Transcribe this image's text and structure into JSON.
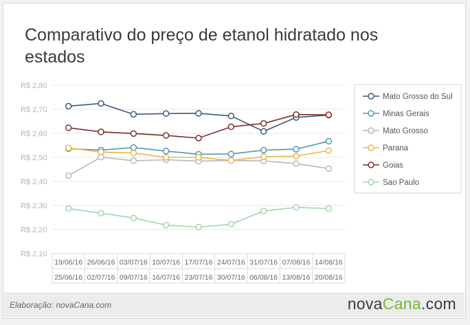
{
  "title": "Comparativo do preço de etanol hidratado nos estados",
  "footer": {
    "credit": "Elaboração: novaCana.com",
    "brand_part1": "nova",
    "brand_part2": "Cana",
    "brand_part3": ".com"
  },
  "chart_data": {
    "type": "line",
    "title": "Comparativo do preço de etanol hidratado nos estados",
    "categories": [
      [
        "19/06/16",
        "25/06/16"
      ],
      [
        "26/06/16",
        "02/07/16"
      ],
      [
        "03/07/16",
        "09/07/16"
      ],
      [
        "10/07/16",
        "16/07/16"
      ],
      [
        "17/07/16",
        "23/07/16"
      ],
      [
        "24/07/16",
        "30/07/16"
      ],
      [
        "31/07/16",
        "06/08/16"
      ],
      [
        "07/08/16",
        "13/08/16"
      ],
      [
        "14/08/16",
        "20/08/16"
      ]
    ],
    "y_ticks": [
      "R$ 2,10",
      "R$ 2,20",
      "R$ 2,30",
      "R$ 2,40",
      "R$ 2,50",
      "R$ 2,60",
      "R$ 2,70",
      "R$ 2,80"
    ],
    "ylim": [
      2.1,
      2.8
    ],
    "grid": true,
    "legend_position": "right",
    "series": [
      {
        "name": "Mato Grosso do Sul",
        "color": "#3d5877",
        "values": [
          2.713,
          2.724,
          2.679,
          2.682,
          2.683,
          2.672,
          2.608,
          2.666,
          2.676
        ]
      },
      {
        "name": "Minas Gerais",
        "color": "#4e9aa9",
        "values": [
          2.536,
          2.53,
          2.541,
          2.526,
          2.513,
          2.514,
          2.53,
          2.534,
          2.567
        ]
      },
      {
        "name": "Mato Grosso",
        "color": "#b8b8b8",
        "values": [
          2.424,
          2.501,
          2.486,
          2.49,
          2.484,
          2.487,
          2.485,
          2.474,
          2.453
        ]
      },
      {
        "name": "Parana",
        "color": "#f0b349",
        "values": [
          2.539,
          2.522,
          2.518,
          2.5,
          2.5,
          2.487,
          2.503,
          2.505,
          2.528
        ]
      },
      {
        "name": "Goias",
        "color": "#7a2e2a",
        "values": [
          2.623,
          2.606,
          2.599,
          2.591,
          2.58,
          2.627,
          2.641,
          2.678,
          2.677
        ]
      },
      {
        "name": "Sao Paulo",
        "color": "#a3d6a7",
        "values": [
          2.287,
          2.268,
          2.248,
          2.218,
          2.21,
          2.222,
          2.277,
          2.292,
          2.287
        ]
      }
    ]
  }
}
